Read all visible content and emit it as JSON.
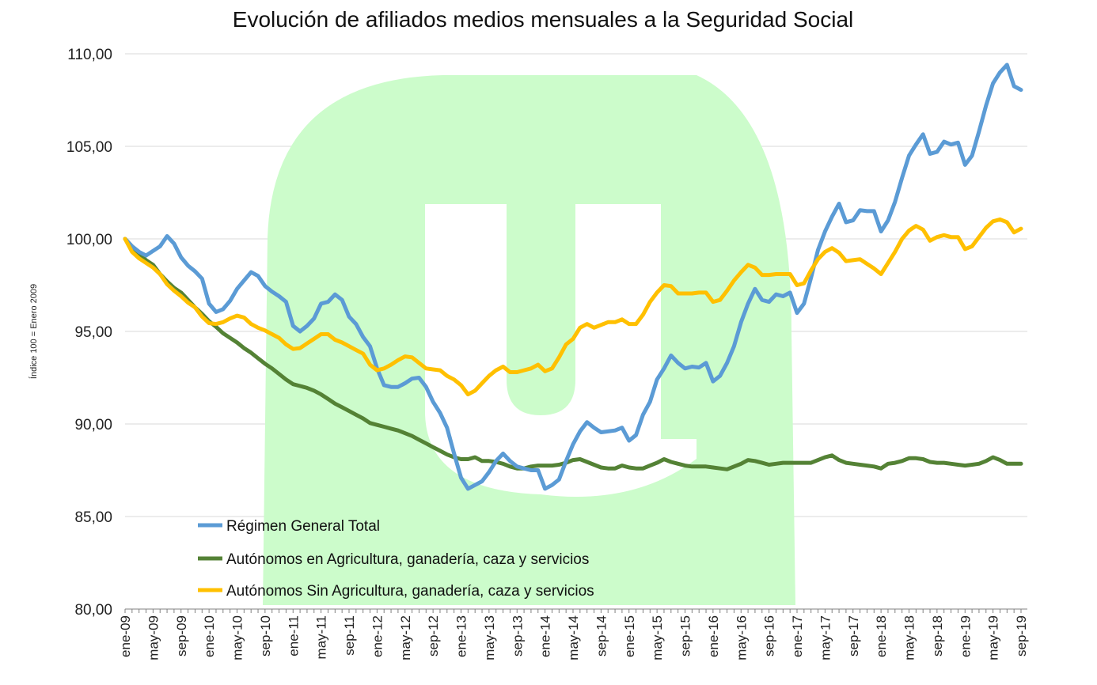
{
  "chart_data": {
    "type": "line",
    "title": "Evolución de afiliados medios mensuales a la Seguridad Social",
    "xlabel": "",
    "ylabel": "Índice 100 = Enero 2009",
    "ylim": [
      80,
      110
    ],
    "y_ticks": [
      "80,00",
      "85,00",
      "90,00",
      "95,00",
      "100,00",
      "105,00",
      "110,00"
    ],
    "x_tick_labels": [
      "ene-09",
      "may-09",
      "sep-09",
      "ene-10",
      "may-10",
      "sep-10",
      "ene-11",
      "may-11",
      "sep-11",
      "ene-12",
      "may-12",
      "sep-12",
      "ene-13",
      "may-13",
      "sep-13",
      "ene-14",
      "may-14",
      "sep-14",
      "ene-15",
      "may-15",
      "sep-15",
      "ene-16",
      "may-16",
      "sep-16",
      "ene-17",
      "may-17",
      "sep-17",
      "ene-18",
      "may-18",
      "sep-18",
      "ene-19",
      "may-19",
      "sep-19"
    ],
    "categories": [
      "ene-09",
      "feb-09",
      "mar-09",
      "abr-09",
      "may-09",
      "jun-09",
      "jul-09",
      "ago-09",
      "sep-09",
      "oct-09",
      "nov-09",
      "dic-09",
      "ene-10",
      "feb-10",
      "mar-10",
      "abr-10",
      "may-10",
      "jun-10",
      "jul-10",
      "ago-10",
      "sep-10",
      "oct-10",
      "nov-10",
      "dic-10",
      "ene-11",
      "feb-11",
      "mar-11",
      "abr-11",
      "may-11",
      "jun-11",
      "jul-11",
      "ago-11",
      "sep-11",
      "oct-11",
      "nov-11",
      "dic-11",
      "ene-12",
      "feb-12",
      "mar-12",
      "abr-12",
      "may-12",
      "jun-12",
      "jul-12",
      "ago-12",
      "sep-12",
      "oct-12",
      "nov-12",
      "dic-12",
      "ene-13",
      "feb-13",
      "mar-13",
      "abr-13",
      "may-13",
      "jun-13",
      "jul-13",
      "ago-13",
      "sep-13",
      "oct-13",
      "nov-13",
      "dic-13",
      "ene-14",
      "feb-14",
      "mar-14",
      "abr-14",
      "may-14",
      "jun-14",
      "jul-14",
      "ago-14",
      "sep-14",
      "oct-14",
      "nov-14",
      "dic-14",
      "ene-15",
      "feb-15",
      "mar-15",
      "abr-15",
      "may-15",
      "jun-15",
      "jul-15",
      "ago-15",
      "sep-15",
      "oct-15",
      "nov-15",
      "dic-15",
      "ene-16",
      "feb-16",
      "mar-16",
      "abr-16",
      "may-16",
      "jun-16",
      "jul-16",
      "ago-16",
      "sep-16",
      "oct-16",
      "nov-16",
      "dic-16",
      "ene-17",
      "feb-17",
      "mar-17",
      "abr-17",
      "may-17",
      "jun-17",
      "jul-17",
      "ago-17",
      "sep-17",
      "oct-17",
      "nov-17",
      "dic-17",
      "ene-18",
      "feb-18",
      "mar-18",
      "abr-18",
      "may-18",
      "jun-18",
      "jul-18",
      "ago-18",
      "sep-18",
      "oct-18",
      "nov-18",
      "dic-18",
      "ene-19",
      "feb-19",
      "mar-19",
      "abr-19",
      "may-19",
      "jun-19",
      "jul-19",
      "ago-19",
      "sep-19"
    ],
    "grid": true,
    "legend_position": "bottom-left",
    "series": [
      {
        "name": "Régimen General Total",
        "color": "#5B9BD5",
        "values": [
          100.0,
          99.6,
          99.3,
          99.1,
          99.35,
          99.6,
          100.15,
          99.75,
          99.0,
          98.55,
          98.25,
          97.85,
          96.5,
          96.05,
          96.2,
          96.65,
          97.3,
          97.75,
          98.2,
          98.0,
          97.45,
          97.15,
          96.9,
          96.6,
          95.3,
          95.0,
          95.3,
          95.7,
          96.5,
          96.6,
          97.0,
          96.7,
          95.8,
          95.4,
          94.7,
          94.2,
          93.0,
          92.1,
          92.0,
          92.0,
          92.2,
          92.45,
          92.5,
          92.0,
          91.2,
          90.6,
          89.8,
          88.4,
          87.1,
          86.5,
          86.7,
          86.9,
          87.4,
          88.0,
          88.4,
          88.0,
          87.7,
          87.6,
          87.5,
          87.5,
          86.5,
          86.7,
          87.0,
          88.0,
          88.9,
          89.6,
          90.1,
          89.8,
          89.55,
          89.6,
          89.65,
          89.8,
          89.1,
          89.4,
          90.5,
          91.2,
          92.4,
          93.0,
          93.7,
          93.3,
          93.0,
          93.1,
          93.05,
          93.3,
          92.3,
          92.6,
          93.3,
          94.2,
          95.5,
          96.5,
          97.3,
          96.7,
          96.6,
          97.0,
          96.9,
          97.1,
          96.0,
          96.5,
          97.9,
          99.4,
          100.4,
          101.2,
          101.9,
          100.9,
          101.0,
          101.55,
          101.5,
          101.5,
          100.4,
          101.0,
          102.0,
          103.3,
          104.5,
          105.1,
          105.65,
          104.6,
          104.7,
          105.25,
          105.1,
          105.2,
          104.0,
          104.5,
          105.8,
          107.2,
          108.4,
          109.0,
          109.4,
          108.25,
          108.05
        ]
      },
      {
        "name": "Autónomos en Agricultura, ganadería, caza y servicios",
        "color": "#548235",
        "values": [
          100.0,
          99.6,
          99.2,
          98.85,
          98.6,
          98.1,
          97.7,
          97.35,
          97.1,
          96.7,
          96.3,
          95.95,
          95.55,
          95.25,
          94.9,
          94.65,
          94.4,
          94.1,
          93.85,
          93.55,
          93.25,
          93.0,
          92.7,
          92.4,
          92.15,
          92.05,
          91.95,
          91.8,
          91.6,
          91.35,
          91.1,
          90.9,
          90.7,
          90.5,
          90.3,
          90.05,
          89.95,
          89.85,
          89.75,
          89.65,
          89.5,
          89.35,
          89.15,
          88.95,
          88.75,
          88.55,
          88.35,
          88.2,
          88.1,
          88.1,
          88.2,
          88.0,
          88.0,
          87.95,
          87.85,
          87.7,
          87.6,
          87.6,
          87.7,
          87.75,
          87.75,
          87.75,
          87.8,
          87.9,
          88.05,
          88.1,
          87.95,
          87.8,
          87.65,
          87.6,
          87.6,
          87.75,
          87.65,
          87.6,
          87.6,
          87.75,
          87.9,
          88.1,
          87.95,
          87.85,
          87.75,
          87.7,
          87.7,
          87.7,
          87.65,
          87.6,
          87.55,
          87.7,
          87.85,
          88.05,
          88.0,
          87.9,
          87.8,
          87.85,
          87.9,
          87.9,
          87.9,
          87.9,
          87.9,
          88.05,
          88.2,
          88.3,
          88.05,
          87.9,
          87.85,
          87.8,
          87.75,
          87.7,
          87.6,
          87.85,
          87.9,
          88.0,
          88.15,
          88.15,
          88.1,
          87.95,
          87.9,
          87.9,
          87.85,
          87.8,
          87.75,
          87.8,
          87.85,
          88.0,
          88.2,
          88.05,
          87.85,
          87.85,
          87.85
        ]
      },
      {
        "name": "Autónomos Sin Agricultura, ganadería, caza y servicios",
        "color": "#FFC000",
        "values": [
          100.0,
          99.3,
          98.95,
          98.7,
          98.45,
          98.1,
          97.55,
          97.2,
          96.9,
          96.55,
          96.3,
          95.8,
          95.45,
          95.4,
          95.5,
          95.7,
          95.85,
          95.75,
          95.4,
          95.2,
          95.05,
          94.85,
          94.65,
          94.3,
          94.05,
          94.1,
          94.35,
          94.6,
          94.85,
          94.85,
          94.55,
          94.4,
          94.2,
          94.0,
          93.8,
          93.2,
          92.9,
          93.0,
          93.2,
          93.45,
          93.65,
          93.6,
          93.3,
          93.0,
          92.95,
          92.9,
          92.6,
          92.4,
          92.1,
          91.6,
          91.8,
          92.2,
          92.6,
          92.9,
          93.1,
          92.8,
          92.8,
          92.9,
          93.0,
          93.2,
          92.85,
          93.0,
          93.6,
          94.3,
          94.6,
          95.2,
          95.4,
          95.2,
          95.35,
          95.5,
          95.5,
          95.65,
          95.4,
          95.4,
          95.9,
          96.6,
          97.1,
          97.5,
          97.45,
          97.05,
          97.05,
          97.05,
          97.1,
          97.1,
          96.6,
          96.7,
          97.2,
          97.75,
          98.2,
          98.6,
          98.45,
          98.05,
          98.05,
          98.1,
          98.1,
          98.1,
          97.5,
          97.6,
          98.3,
          98.9,
          99.3,
          99.5,
          99.25,
          98.8,
          98.85,
          98.9,
          98.65,
          98.4,
          98.1,
          98.7,
          99.3,
          100.0,
          100.45,
          100.7,
          100.5,
          99.9,
          100.1,
          100.2,
          100.1,
          100.1,
          99.45,
          99.6,
          100.1,
          100.6,
          100.95,
          101.05,
          100.9,
          100.35,
          100.55
        ]
      }
    ]
  },
  "watermark": {
    "color": "#CCFCCB"
  }
}
